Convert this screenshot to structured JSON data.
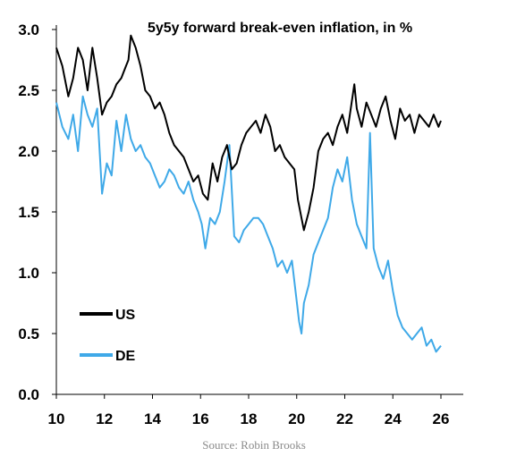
{
  "chart_data": {
    "type": "line",
    "title": "5y5y forward break-even inflation, in %",
    "xlabel": "",
    "ylabel": "",
    "xlim": [
      10,
      26
    ],
    "ylim": [
      0,
      3
    ],
    "x_ticks": [
      "10",
      "12",
      "14",
      "16",
      "18",
      "20",
      "22",
      "24",
      "26"
    ],
    "y_ticks": [
      "0.0",
      "0.5",
      "1.0",
      "1.5",
      "2.0",
      "2.5",
      "3.0"
    ],
    "grid": false,
    "legend_position": "lower-left",
    "series": [
      {
        "name": "US",
        "color": "#000000",
        "x": [
          10.0,
          10.25,
          10.5,
          10.7,
          10.9,
          11.1,
          11.3,
          11.5,
          11.7,
          11.9,
          12.1,
          12.3,
          12.5,
          12.7,
          12.9,
          13.0,
          13.1,
          13.3,
          13.5,
          13.7,
          13.9,
          14.1,
          14.3,
          14.5,
          14.7,
          14.9,
          15.1,
          15.3,
          15.5,
          15.7,
          15.9,
          16.1,
          16.3,
          16.5,
          16.7,
          16.9,
          17.1,
          17.3,
          17.5,
          17.7,
          17.9,
          18.1,
          18.3,
          18.5,
          18.7,
          18.9,
          19.1,
          19.3,
          19.5,
          19.7,
          19.9,
          20.05,
          20.2,
          20.3,
          20.5,
          20.7,
          20.9,
          21.1,
          21.3,
          21.5,
          21.7,
          21.9,
          22.1,
          22.25,
          22.4,
          22.5,
          22.7,
          22.9,
          23.1,
          23.3,
          23.5,
          23.7,
          23.9,
          24.1,
          24.3,
          24.5,
          24.7,
          24.9,
          25.1,
          25.3,
          25.5,
          25.7,
          25.9,
          26.0
        ],
        "values": [
          2.85,
          2.7,
          2.45,
          2.6,
          2.85,
          2.75,
          2.5,
          2.85,
          2.6,
          2.3,
          2.4,
          2.45,
          2.55,
          2.6,
          2.7,
          2.75,
          2.95,
          2.85,
          2.7,
          2.5,
          2.45,
          2.35,
          2.4,
          2.3,
          2.15,
          2.05,
          2.0,
          1.95,
          1.85,
          1.75,
          1.8,
          1.65,
          1.6,
          1.9,
          1.75,
          1.95,
          2.05,
          1.85,
          1.9,
          2.05,
          2.15,
          2.2,
          2.25,
          2.15,
          2.3,
          2.2,
          2.0,
          2.05,
          1.95,
          1.9,
          1.85,
          1.6,
          1.45,
          1.35,
          1.5,
          1.7,
          2.0,
          2.1,
          2.15,
          2.05,
          2.2,
          2.3,
          2.15,
          2.35,
          2.55,
          2.35,
          2.2,
          2.4,
          2.3,
          2.2,
          2.35,
          2.45,
          2.25,
          2.1,
          2.35,
          2.25,
          2.3,
          2.15,
          2.3,
          2.25,
          2.2,
          2.3,
          2.2,
          2.25
        ]
      },
      {
        "name": "DE",
        "color": "#3fa9e8",
        "x": [
          10.0,
          10.25,
          10.5,
          10.7,
          10.9,
          11.1,
          11.3,
          11.5,
          11.7,
          11.9,
          12.1,
          12.3,
          12.5,
          12.7,
          12.9,
          13.1,
          13.3,
          13.5,
          13.7,
          13.9,
          14.1,
          14.3,
          14.5,
          14.7,
          14.9,
          15.1,
          15.3,
          15.5,
          15.7,
          15.9,
          16.05,
          16.2,
          16.4,
          16.6,
          16.8,
          17.0,
          17.2,
          17.4,
          17.6,
          17.8,
          18.0,
          18.2,
          18.4,
          18.6,
          18.8,
          19.0,
          19.2,
          19.4,
          19.6,
          19.8,
          19.95,
          20.1,
          20.2,
          20.3,
          20.5,
          20.7,
          20.9,
          21.1,
          21.3,
          21.5,
          21.7,
          21.9,
          22.1,
          22.3,
          22.5,
          22.7,
          22.9,
          23.05,
          23.2,
          23.4,
          23.6,
          23.8,
          24.0,
          24.2,
          24.4,
          24.6,
          24.8,
          25.0,
          25.2,
          25.4,
          25.6,
          25.8,
          26.0
        ],
        "values": [
          2.4,
          2.2,
          2.1,
          2.3,
          2.0,
          2.45,
          2.3,
          2.2,
          2.35,
          1.65,
          1.9,
          1.8,
          2.25,
          2.0,
          2.3,
          2.1,
          2.0,
          2.05,
          1.95,
          1.9,
          1.8,
          1.7,
          1.75,
          1.85,
          1.8,
          1.7,
          1.65,
          1.75,
          1.6,
          1.5,
          1.4,
          1.2,
          1.45,
          1.4,
          1.5,
          1.75,
          2.05,
          1.3,
          1.25,
          1.35,
          1.4,
          1.45,
          1.45,
          1.4,
          1.3,
          1.2,
          1.05,
          1.1,
          1.0,
          1.1,
          0.85,
          0.6,
          0.5,
          0.75,
          0.9,
          1.15,
          1.25,
          1.35,
          1.45,
          1.7,
          1.85,
          1.75,
          1.95,
          1.6,
          1.4,
          1.3,
          1.2,
          2.15,
          1.2,
          1.05,
          0.95,
          1.1,
          0.85,
          0.65,
          0.55,
          0.5,
          0.45,
          0.5,
          0.55,
          0.4,
          0.45,
          0.35,
          0.4
        ]
      }
    ]
  },
  "legend": {
    "us_label": "US",
    "de_label": "DE"
  },
  "source_text": "Source: Robin Brooks"
}
